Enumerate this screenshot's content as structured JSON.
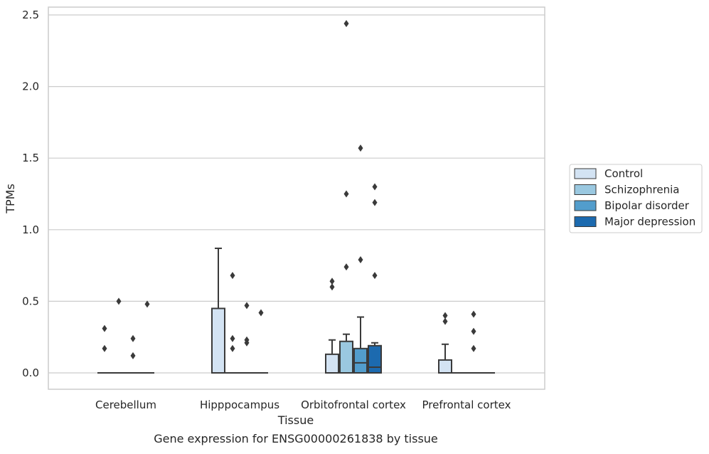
{
  "chart_data": {
    "type": "box",
    "caption": "Gene expression for ENSG00000261838 by tissue",
    "xlabel": "Tissue",
    "ylabel": "TPMs",
    "ylim": [
      -0.12,
      2.57
    ],
    "yticks": [
      0.0,
      0.5,
      1.0,
      1.5,
      2.0,
      2.5
    ],
    "ytick_labels": [
      "0.0",
      "0.5",
      "1.0",
      "1.5",
      "2.0",
      "2.5"
    ],
    "grid": "horizontal",
    "legend_position": "right",
    "categories": [
      "Cerebellum",
      "Hipppocampus",
      "Orbitofrontal cortex",
      "Prefrontal cortex"
    ],
    "series": [
      {
        "name": "Control",
        "color": "#d3e3f3",
        "boxes": [
          {
            "q1": 0,
            "median": 0,
            "q3": 0,
            "whislo": 0,
            "whishi": 0,
            "fliers": [
              0.31,
              0.17
            ]
          },
          {
            "q1": 0,
            "median": 0,
            "q3": 0.45,
            "whislo": 0,
            "whishi": 0.87,
            "fliers": []
          },
          {
            "q1": 0,
            "median": 0,
            "q3": 0.13,
            "whislo": 0,
            "whishi": 0.23,
            "fliers": [
              0.64,
              0.6
            ]
          },
          {
            "q1": 0,
            "median": 0,
            "q3": 0.09,
            "whislo": 0,
            "whishi": 0.2,
            "fliers": [
              0.4,
              0.36
            ]
          }
        ]
      },
      {
        "name": "Schizophrenia",
        "color": "#9ac8e0",
        "boxes": [
          {
            "q1": 0,
            "median": 0,
            "q3": 0,
            "whislo": 0,
            "whishi": 0,
            "fliers": [
              0.5
            ]
          },
          {
            "q1": 0,
            "median": 0,
            "q3": 0,
            "whislo": 0,
            "whishi": 0,
            "fliers": [
              0.68,
              0.24,
              0.17
            ]
          },
          {
            "q1": 0,
            "median": 0,
            "q3": 0.22,
            "whislo": 0,
            "whishi": 0.27,
            "fliers": [
              2.44,
              1.25,
              0.74
            ]
          },
          {
            "q1": 0,
            "median": 0,
            "q3": 0,
            "whislo": 0,
            "whishi": 0,
            "fliers": []
          }
        ]
      },
      {
        "name": "Bipolar disorder",
        "color": "#529dcc",
        "boxes": [
          {
            "q1": 0,
            "median": 0,
            "q3": 0,
            "whislo": 0,
            "whishi": 0,
            "fliers": [
              0.24,
              0.12
            ]
          },
          {
            "q1": 0,
            "median": 0,
            "q3": 0,
            "whislo": 0,
            "whishi": 0,
            "fliers": [
              0.47,
              0.23,
              0.21
            ]
          },
          {
            "q1": 0,
            "median": 0.07,
            "q3": 0.17,
            "whislo": 0,
            "whishi": 0.39,
            "fliers": [
              1.57,
              0.79
            ]
          },
          {
            "q1": 0,
            "median": 0,
            "q3": 0,
            "whislo": 0,
            "whishi": 0,
            "fliers": [
              0.41,
              0.29,
              0.17
            ]
          }
        ]
      },
      {
        "name": "Major depression",
        "color": "#1c6aaf",
        "boxes": [
          {
            "q1": 0,
            "median": 0,
            "q3": 0,
            "whislo": 0,
            "whishi": 0,
            "fliers": [
              0.48
            ]
          },
          {
            "q1": 0,
            "median": 0,
            "q3": 0,
            "whislo": 0,
            "whishi": 0,
            "fliers": [
              0.42
            ]
          },
          {
            "q1": 0,
            "median": 0.04,
            "q3": 0.19,
            "whislo": 0,
            "whishi": 0.21,
            "fliers": [
              1.3,
              1.19,
              0.68
            ]
          },
          {
            "q1": 0,
            "median": 0,
            "q3": 0,
            "whislo": 0,
            "whishi": 0,
            "fliers": []
          }
        ]
      }
    ],
    "colors": {
      "box_edge": "#3a3a3a",
      "grid": "#cccccc",
      "frame": "#cccccc",
      "text": "#262626"
    }
  }
}
